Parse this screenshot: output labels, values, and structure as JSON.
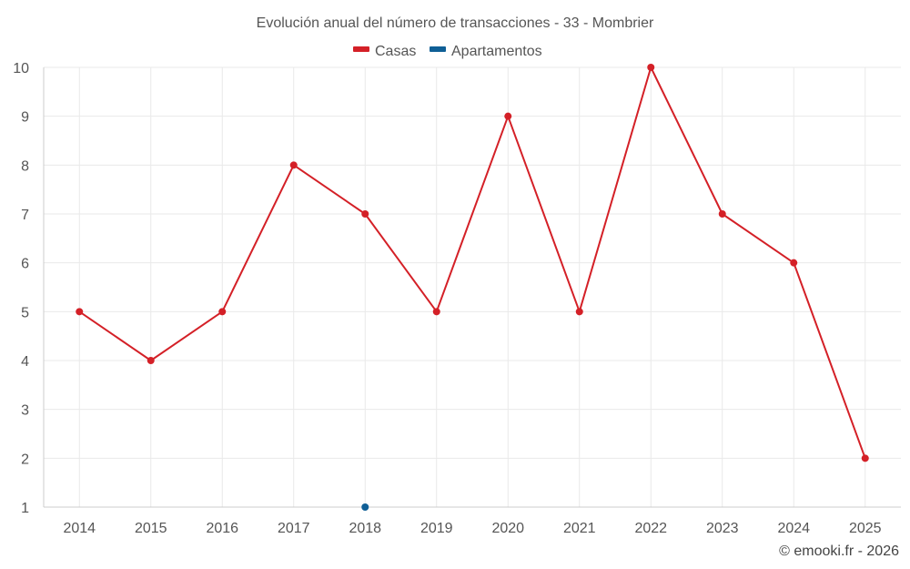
{
  "chart_data": {
    "type": "line",
    "title": "Evolución anual del número de transacciones - 33 - Mombrier",
    "categories": [
      "2014",
      "2015",
      "2016",
      "2017",
      "2018",
      "2019",
      "2020",
      "2021",
      "2022",
      "2023",
      "2024",
      "2025"
    ],
    "series": [
      {
        "name": "Casas",
        "color": "#d42027",
        "values": [
          5,
          4,
          5,
          8,
          7,
          5,
          9,
          5,
          10,
          7,
          6,
          2
        ]
      },
      {
        "name": "Apartamentos",
        "color": "#0f5f96",
        "values": [
          null,
          null,
          null,
          null,
          1,
          null,
          null,
          null,
          null,
          null,
          null,
          null
        ]
      }
    ],
    "ylim": [
      1,
      10
    ],
    "yticks": [
      "1",
      "2",
      "3",
      "4",
      "5",
      "6",
      "7",
      "8",
      "9",
      "10"
    ],
    "xlabel": "",
    "ylabel": "",
    "grid": true,
    "legend": "top-center",
    "credit": "© emooki.fr - 2026"
  }
}
